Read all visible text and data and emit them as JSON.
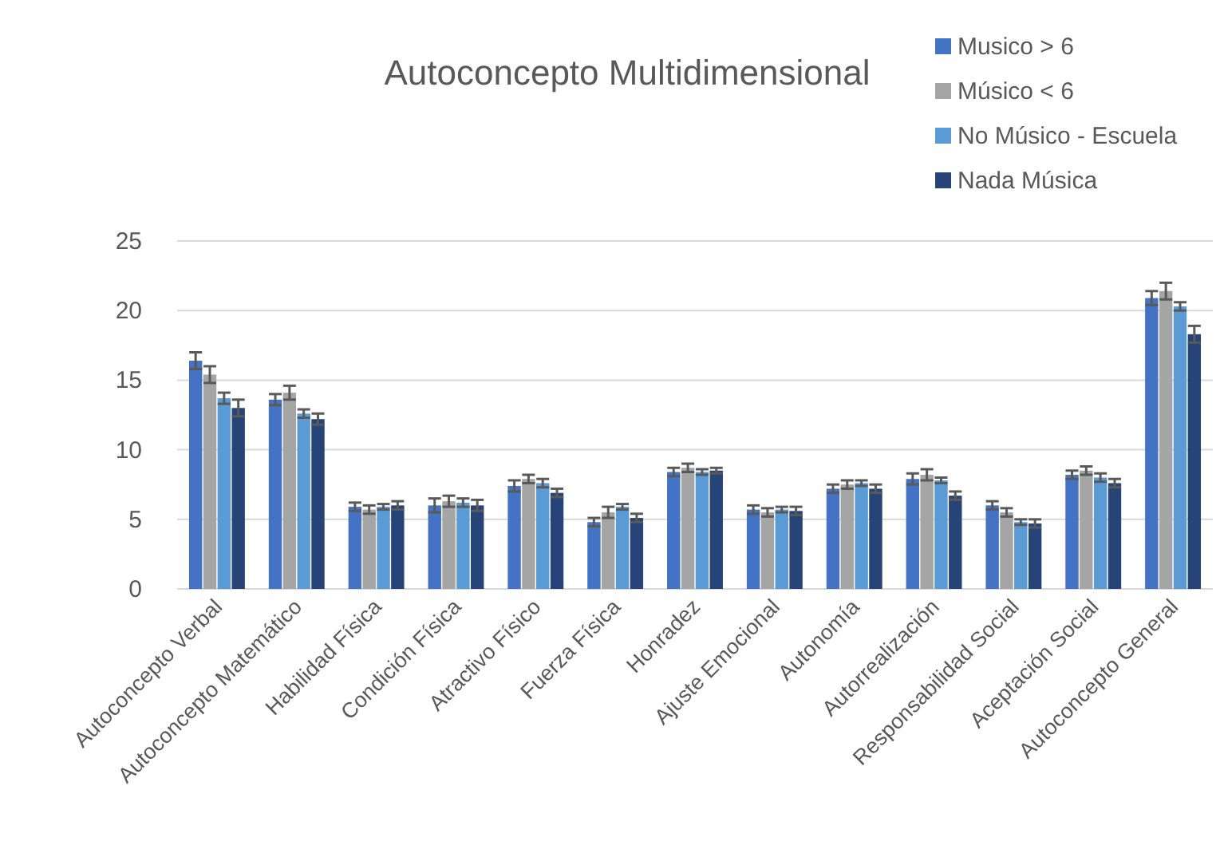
{
  "chart_data": {
    "type": "bar",
    "title": "Autoconcepto Multidimensional",
    "categories": [
      "Autoconcepto Verbal",
      "Autoconcepto Matemático",
      "Habilidad Física",
      "Condición Física",
      "Atractivo Físico",
      "Fuerza Física",
      "Honradez",
      "Ajuste Emocional",
      "Autonomía",
      "Autorrealización",
      "Responsabilidad Social",
      "Aceptación Social",
      "Autoconcepto General"
    ],
    "series": [
      {
        "name": "Musico > 6",
        "color": "#4472c4",
        "values": [
          16.4,
          13.6,
          5.9,
          6.0,
          7.4,
          4.8,
          8.4,
          5.7,
          7.2,
          7.9,
          6.0,
          8.2,
          20.9
        ],
        "errors": [
          0.6,
          0.4,
          0.3,
          0.5,
          0.4,
          0.3,
          0.3,
          0.3,
          0.3,
          0.4,
          0.3,
          0.3,
          0.5
        ]
      },
      {
        "name": "Músico < 6",
        "color": "#a5a5a5",
        "values": [
          15.4,
          14.1,
          5.7,
          6.3,
          7.9,
          5.5,
          8.7,
          5.5,
          7.5,
          8.2,
          5.5,
          8.5,
          21.4
        ],
        "errors": [
          0.6,
          0.5,
          0.3,
          0.4,
          0.3,
          0.4,
          0.3,
          0.3,
          0.3,
          0.4,
          0.3,
          0.3,
          0.6
        ]
      },
      {
        "name": "No Músico - Escuela",
        "color": "#5b9bd5",
        "values": [
          13.7,
          12.6,
          5.9,
          6.2,
          7.6,
          5.9,
          8.4,
          5.7,
          7.6,
          7.8,
          4.8,
          8.0,
          20.3
        ],
        "errors": [
          0.4,
          0.3,
          0.2,
          0.3,
          0.3,
          0.2,
          0.2,
          0.2,
          0.2,
          0.2,
          0.2,
          0.3,
          0.3
        ]
      },
      {
        "name": "Nada Música",
        "color": "#264478",
        "values": [
          13.0,
          12.2,
          6.0,
          6.0,
          6.9,
          5.1,
          8.5,
          5.6,
          7.2,
          6.7,
          4.7,
          7.6,
          18.3
        ],
        "errors": [
          0.6,
          0.4,
          0.3,
          0.4,
          0.3,
          0.3,
          0.2,
          0.3,
          0.3,
          0.3,
          0.3,
          0.3,
          0.6
        ]
      }
    ],
    "ylim": [
      0,
      25
    ],
    "yticks": [
      0,
      5,
      10,
      15,
      20,
      25
    ],
    "grid": "y",
    "legend": "top right"
  }
}
